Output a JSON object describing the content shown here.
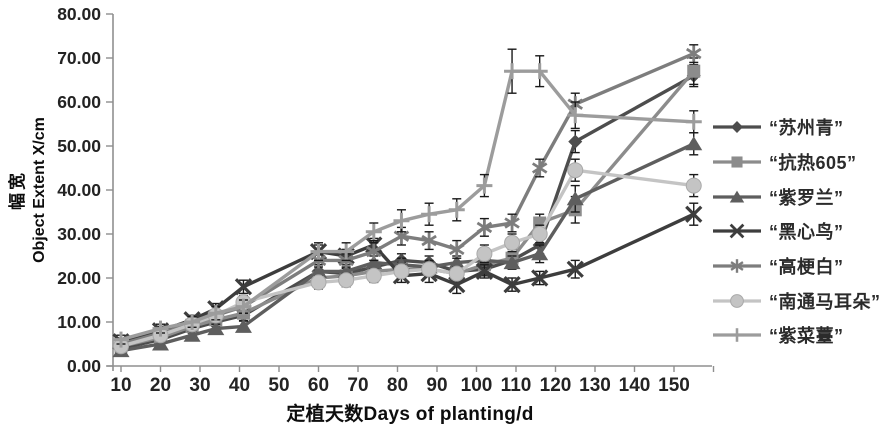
{
  "chart_data": {
    "type": "line",
    "title": "",
    "xlabel": "定植天数Days of planting/d",
    "ylabel_cn": "幅宽",
    "ylabel_en": "Object Extent X/cm",
    "ylim": [
      0,
      80
    ],
    "xlim": [
      8,
      160
    ],
    "grid": false,
    "legend_position": "right",
    "error_bars": true,
    "y_ticks": [
      0,
      10,
      20,
      30,
      40,
      50,
      60,
      70,
      80
    ],
    "y_tick_labels": [
      "0.00",
      "10.00",
      "20.00",
      "30.00",
      "40.00",
      "50.00",
      "60.00",
      "70.00",
      "80.00"
    ],
    "x_ticks": [
      10,
      20,
      30,
      40,
      50,
      60,
      70,
      80,
      90,
      100,
      110,
      120,
      130,
      140,
      150,
      160
    ],
    "x_tick_labels": [
      "10",
      "20",
      "30",
      "40",
      "50",
      "60",
      "70",
      "80",
      "90",
      "100",
      "110",
      "120",
      "130",
      "140",
      "150",
      ""
    ],
    "x": [
      10,
      20,
      28,
      34,
      41,
      60,
      67,
      74,
      81,
      88,
      95,
      102,
      109,
      116,
      125,
      155
    ],
    "series": [
      {
        "key": "suzhou-qing",
        "name": "“苏州青”",
        "marker": "diamond",
        "color": "#4d4d4d",
        "values": [
          4.0,
          6.0,
          8.5,
          10.0,
          11.5,
          21.5,
          21.0,
          22.5,
          24.0,
          23.5,
          21.5,
          22.0,
          24.0,
          27.5,
          51.0,
          66.0
        ],
        "err": [
          0.8,
          0.8,
          1.0,
          1.0,
          1.2,
          1.5,
          1.2,
          1.5,
          1.5,
          1.5,
          1.5,
          1.5,
          1.5,
          2.0,
          2.5,
          2.5
        ]
      },
      {
        "key": "kangre-605",
        "name": "“抗热605”",
        "marker": "square",
        "color": "#8c8c8c",
        "values": [
          4.5,
          6.5,
          9.0,
          10.5,
          12.0,
          20.0,
          20.5,
          21.5,
          22.0,
          22.0,
          21.0,
          23.0,
          24.5,
          32.5,
          35.5,
          67.0
        ],
        "err": [
          0.8,
          0.8,
          1.0,
          1.0,
          1.2,
          1.5,
          1.2,
          1.5,
          1.5,
          1.5,
          1.5,
          1.5,
          2.0,
          2.0,
          3.0,
          3.0
        ]
      },
      {
        "key": "ziluolan",
        "name": "“紫罗兰”",
        "marker": "triangle",
        "color": "#5e5e5e",
        "values": [
          3.5,
          5.0,
          7.0,
          8.5,
          9.0,
          21.5,
          21.5,
          23.5,
          23.0,
          22.5,
          23.5,
          24.0,
          23.5,
          25.5,
          38.0,
          50.5
        ],
        "err": [
          0.8,
          0.8,
          1.0,
          1.0,
          1.2,
          1.5,
          1.5,
          1.5,
          1.5,
          1.5,
          1.5,
          1.5,
          1.5,
          2.0,
          3.0,
          2.5
        ]
      },
      {
        "key": "heixinniao",
        "name": "“黑心鸟”",
        "marker": "x",
        "color": "#3d3d3d",
        "values": [
          5.5,
          8.0,
          10.5,
          13.0,
          18.0,
          26.0,
          25.0,
          27.5,
          20.5,
          21.0,
          18.5,
          21.5,
          18.5,
          20.0,
          22.0,
          34.5
        ],
        "err": [
          0.8,
          1.0,
          1.0,
          1.2,
          1.5,
          1.5,
          1.5,
          1.5,
          1.5,
          2.0,
          2.0,
          1.5,
          1.5,
          1.5,
          2.0,
          2.5
        ]
      },
      {
        "key": "gaogengbai",
        "name": "“高梗白”",
        "marker": "asterisk",
        "color": "#7d7d7d",
        "values": [
          5.0,
          7.5,
          9.5,
          11.5,
          13.5,
          24.0,
          24.0,
          26.0,
          29.5,
          28.5,
          26.5,
          31.5,
          32.5,
          45.0,
          59.5,
          71.0
        ],
        "err": [
          0.8,
          1.0,
          1.0,
          1.2,
          1.5,
          1.5,
          1.5,
          2.0,
          2.0,
          2.0,
          2.0,
          2.0,
          2.0,
          2.0,
          2.5,
          2.0
        ]
      },
      {
        "key": "nantong-maerduo",
        "name": "“南通马耳朵”",
        "marker": "circle",
        "color": "#c4c4c4",
        "values": [
          4.5,
          7.0,
          9.5,
          11.5,
          14.5,
          19.0,
          19.5,
          20.5,
          21.5,
          22.0,
          21.0,
          25.5,
          28.0,
          30.0,
          44.5,
          41.0
        ],
        "err": [
          0.8,
          1.0,
          1.0,
          1.2,
          1.5,
          1.5,
          1.5,
          1.5,
          1.5,
          1.5,
          1.5,
          2.0,
          2.0,
          2.0,
          2.5,
          2.5
        ]
      },
      {
        "key": "zicaitai",
        "name": "“紫菜薹”",
        "marker": "plus",
        "color": "#9c9c9c",
        "values": [
          6.0,
          8.5,
          10.0,
          12.0,
          13.5,
          26.0,
          26.0,
          30.5,
          33.0,
          34.5,
          35.5,
          41.0,
          67.0,
          67.0,
          57.0,
          55.5
        ],
        "err": [
          1.0,
          1.0,
          1.2,
          1.5,
          1.5,
          2.0,
          2.0,
          2.0,
          2.5,
          2.5,
          2.5,
          2.5,
          5.0,
          3.5,
          3.0,
          2.5
        ]
      }
    ]
  }
}
